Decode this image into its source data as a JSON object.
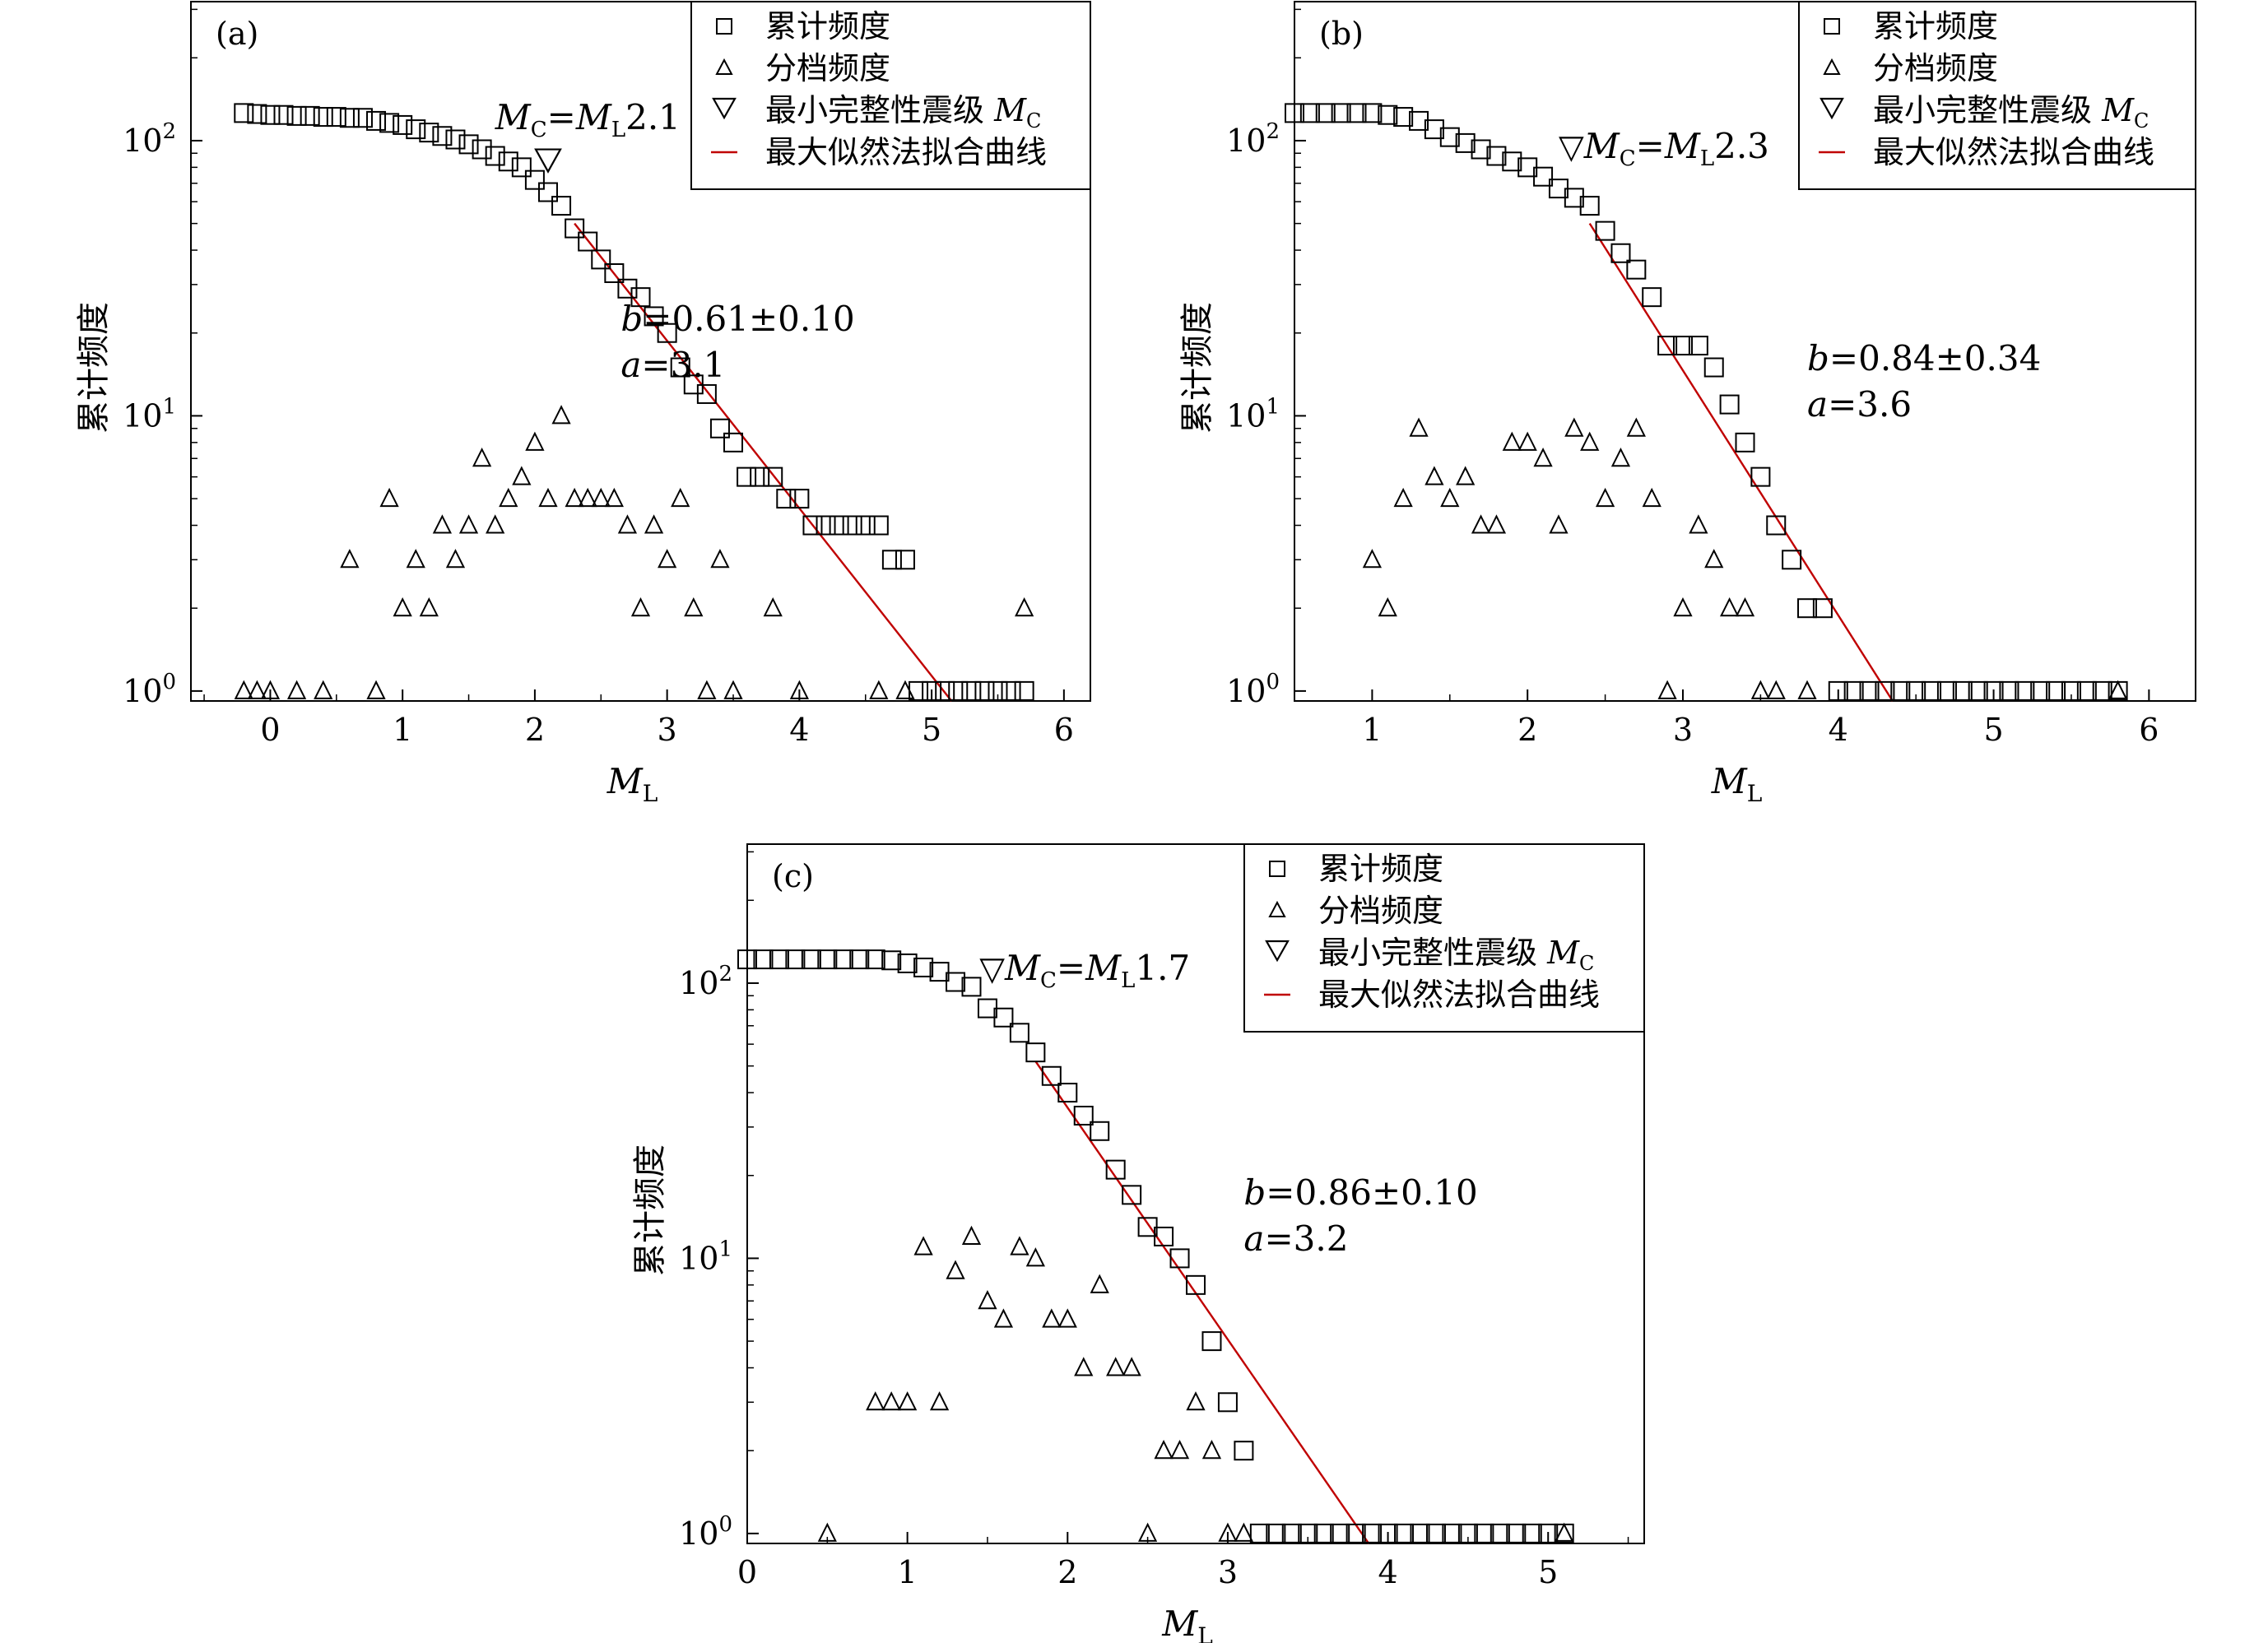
{
  "chart_data": [
    {
      "type": "scatter",
      "panel_label": "(a)",
      "xlabel": "M",
      "xlabel_sub": "L",
      "ylabel": "累计频度",
      "y_scale": "log",
      "xlim": [
        -0.6,
        6.2
      ],
      "ylim": [
        0.92,
        320
      ],
      "xticks": [
        0,
        1,
        2,
        3,
        4,
        5,
        6
      ],
      "yticks": [
        {
          "value": 1,
          "base": "10",
          "exp": "0"
        },
        {
          "value": 10,
          "base": "10",
          "exp": "1"
        },
        {
          "value": 100,
          "base": "10",
          "exp": "2"
        }
      ],
      "legend": {
        "position": "top-right",
        "cumulative": "累计频度",
        "binned": "分档频度",
        "mc_prefix": "最小完整性震级",
        "mc_symbol": "M",
        "mc_sub": "C",
        "fit": "最大似然法拟合曲线"
      },
      "mc_annotation": {
        "text_m": "M",
        "text_sub1": "C",
        "text_eq": "=",
        "text_m2": "M",
        "text_sub2": "L",
        "text_val": "2.1",
        "triangle_at": [
          2.1,
          85
        ],
        "with_triangle_prefix": false
      },
      "b_value": "b=0.61±0.10",
      "a_value": "a=3.1",
      "fit_line": {
        "x": [
          2.3,
          5.15
        ],
        "y": [
          50,
          0.92
        ]
      },
      "cumulative": {
        "x": [
          -0.2,
          -0.1,
          0,
          0.1,
          0.2,
          0.3,
          0.4,
          0.5,
          0.6,
          0.7,
          0.8,
          0.9,
          1,
          1.1,
          1.2,
          1.3,
          1.4,
          1.5,
          1.6,
          1.7,
          1.8,
          1.9,
          2,
          2.1,
          2.2,
          2.3,
          2.4,
          2.5,
          2.6,
          2.7,
          2.8,
          2.9,
          3,
          3.1,
          3.2,
          3.3,
          3.4,
          3.5,
          3.6,
          3.7,
          3.8,
          3.9,
          4,
          4.1,
          4.2,
          4.3,
          4.4,
          4.5,
          4.6,
          4.7,
          4.8,
          4.9,
          5,
          5.1,
          5.2,
          5.3,
          5.4,
          5.5,
          5.6,
          5.7
        ],
        "y": [
          126,
          125,
          124,
          124,
          123,
          123,
          122,
          122,
          121,
          121,
          118,
          116,
          114,
          110,
          107,
          104,
          101,
          97,
          93,
          88,
          84,
          80,
          72,
          65,
          58,
          48,
          43,
          37,
          33,
          29,
          27,
          23,
          20,
          15,
          13,
          12,
          9,
          8,
          6,
          6,
          6,
          5,
          5,
          4,
          4,
          4,
          4,
          4,
          4,
          3,
          3,
          1,
          1,
          1,
          1,
          1,
          1,
          1,
          1,
          1
        ]
      },
      "binned": {
        "x": [
          -0.2,
          -0.1,
          0,
          0.2,
          0.4,
          0.6,
          0.8,
          0.9,
          1,
          1.1,
          1.2,
          1.3,
          1.4,
          1.5,
          1.6,
          1.7,
          1.8,
          1.9,
          2,
          2.1,
          2.2,
          2.3,
          2.4,
          2.5,
          2.6,
          2.7,
          2.8,
          2.9,
          3,
          3.1,
          3.2,
          3.3,
          3.4,
          3.5,
          3.8,
          4,
          4.6,
          4.8,
          5.7
        ],
        "y": [
          1,
          1,
          1,
          1,
          1,
          3,
          1,
          5,
          2,
          3,
          2,
          4,
          3,
          4,
          7,
          4,
          5,
          6,
          8,
          5,
          10,
          5,
          5,
          5,
          5,
          4,
          2,
          4,
          3,
          5,
          2,
          1,
          3,
          1,
          2,
          1,
          1,
          1,
          2
        ]
      }
    },
    {
      "type": "scatter",
      "panel_label": "(b)",
      "xlabel": "M",
      "xlabel_sub": "L",
      "ylabel": "累计频度",
      "y_scale": "log",
      "xlim": [
        0.5,
        6.3
      ],
      "ylim": [
        0.92,
        320
      ],
      "xticks": [
        1,
        2,
        3,
        4,
        5,
        6
      ],
      "yticks": [
        {
          "value": 1,
          "base": "10",
          "exp": "0"
        },
        {
          "value": 10,
          "base": "10",
          "exp": "1"
        },
        {
          "value": 100,
          "base": "10",
          "exp": "2"
        }
      ],
      "legend": {
        "position": "top-right",
        "cumulative": "累计频度",
        "binned": "分档频度",
        "mc_prefix": "最小完整性震级",
        "mc_symbol": "M",
        "mc_sub": "C",
        "fit": "最大似然法拟合曲线"
      },
      "mc_annotation": {
        "text_m": "M",
        "text_sub1": "C",
        "text_eq": "=",
        "text_m2": "M",
        "text_sub2": "L",
        "text_val": "2.3",
        "triangle_at": null,
        "with_triangle_prefix": true
      },
      "b_value": "b=0.84±0.34",
      "a_value": "a=3.6",
      "fit_line": {
        "x": [
          2.4,
          4.35
        ],
        "y": [
          50,
          0.92
        ]
      },
      "cumulative": {
        "x": [
          0.5,
          0.6,
          0.7,
          0.8,
          0.9,
          1,
          1.1,
          1.2,
          1.3,
          1.4,
          1.5,
          1.6,
          1.7,
          1.8,
          1.9,
          2,
          2.1,
          2.2,
          2.3,
          2.4,
          2.5,
          2.6,
          2.7,
          2.8,
          2.9,
          3,
          3.1,
          3.2,
          3.3,
          3.4,
          3.5,
          3.6,
          3.7,
          3.8,
          3.9,
          4,
          4.1,
          4.2,
          4.3,
          4.4,
          4.5,
          4.6,
          4.7,
          4.8,
          4.9,
          5,
          5.1,
          5.2,
          5.3,
          5.4,
          5.5,
          5.6,
          5.7,
          5.8
        ],
        "y": [
          126,
          126,
          126,
          126,
          126,
          126,
          124,
          122,
          118,
          110,
          103,
          98,
          93,
          88,
          84,
          80,
          74,
          67,
          62,
          58,
          47,
          39,
          34,
          27,
          18,
          18,
          18,
          15,
          11,
          8,
          6,
          4,
          3,
          2,
          2,
          1,
          1,
          1,
          1,
          1,
          1,
          1,
          1,
          1,
          1,
          1,
          1,
          1,
          1,
          1,
          1,
          1,
          1,
          1
        ]
      },
      "binned": {
        "x": [
          1,
          1.1,
          1.2,
          1.3,
          1.4,
          1.5,
          1.6,
          1.7,
          1.8,
          1.9,
          2,
          2.1,
          2.2,
          2.3,
          2.4,
          2.5,
          2.6,
          2.7,
          2.8,
          2.9,
          3,
          3.1,
          3.2,
          3.3,
          3.4,
          3.5,
          3.6,
          3.8,
          5.8
        ],
        "y": [
          3,
          2,
          5,
          9,
          6,
          5,
          6,
          4,
          4,
          8,
          8,
          7,
          4,
          9,
          8,
          5,
          7,
          9,
          5,
          1,
          2,
          4,
          3,
          2,
          2,
          1,
          1,
          1,
          1
        ]
      }
    },
    {
      "type": "scatter",
      "panel_label": "(c)",
      "xlabel": "M",
      "xlabel_sub": "L",
      "ylabel": "累计频度",
      "y_scale": "log",
      "xlim": [
        0,
        5.6
      ],
      "ylim": [
        0.92,
        320
      ],
      "xticks": [
        0,
        1,
        2,
        3,
        4,
        5
      ],
      "yticks": [
        {
          "value": 1,
          "base": "10",
          "exp": "0"
        },
        {
          "value": 10,
          "base": "10",
          "exp": "1"
        },
        {
          "value": 100,
          "base": "10",
          "exp": "2"
        }
      ],
      "legend": {
        "position": "top-right",
        "cumulative": "累计频度",
        "binned": "分档频度",
        "mc_prefix": "最小完整性震级",
        "mc_symbol": "M",
        "mc_sub": "C",
        "fit": "最大似然法拟合曲线"
      },
      "mc_annotation": {
        "text_m": "M",
        "text_sub1": "C",
        "text_eq": "=",
        "text_m2": "M",
        "text_sub2": "L",
        "text_val": "1.7",
        "triangle_at": null,
        "with_triangle_prefix": true
      },
      "b_value": "b=0.86±0.10",
      "a_value": "a=3.2",
      "fit_line": {
        "x": [
          1.8,
          3.88
        ],
        "y": [
          52,
          0.92
        ]
      },
      "cumulative": {
        "x": [
          0,
          0.1,
          0.2,
          0.3,
          0.4,
          0.5,
          0.6,
          0.7,
          0.8,
          0.9,
          1,
          1.1,
          1.2,
          1.3,
          1.4,
          1.5,
          1.6,
          1.7,
          1.8,
          1.9,
          2,
          2.1,
          2.2,
          2.3,
          2.4,
          2.5,
          2.6,
          2.7,
          2.8,
          2.9,
          3,
          3.1,
          3.2,
          3.3,
          3.4,
          3.5,
          3.6,
          3.7,
          3.8,
          3.9,
          4,
          4.1,
          4.2,
          4.3,
          4.4,
          4.5,
          4.6,
          4.7,
          4.8,
          4.9,
          5,
          5.1
        ],
        "y": [
          122,
          122,
          122,
          122,
          122,
          122,
          122,
          122,
          122,
          121,
          118,
          114,
          110,
          101,
          97,
          81,
          75,
          66,
          56,
          46,
          40,
          33,
          29,
          21,
          17,
          13,
          12,
          10,
          8,
          5,
          3,
          2,
          1,
          1,
          1,
          1,
          1,
          1,
          1,
          1,
          1,
          1,
          1,
          1,
          1,
          1,
          1,
          1,
          1,
          1,
          1,
          1
        ]
      },
      "binned": {
        "x": [
          0.5,
          0.8,
          0.9,
          1,
          1.1,
          1.2,
          1.3,
          1.4,
          1.5,
          1.6,
          1.7,
          1.8,
          1.9,
          2,
          2.1,
          2.2,
          2.3,
          2.4,
          2.5,
          2.6,
          2.7,
          2.8,
          2.9,
          3,
          3.1,
          5.1
        ],
        "y": [
          1,
          3,
          3,
          3,
          11,
          3,
          9,
          12,
          7,
          6,
          11,
          10,
          6,
          6,
          4,
          8,
          4,
          4,
          1,
          2,
          2,
          3,
          2,
          1,
          1,
          1
        ]
      }
    }
  ]
}
